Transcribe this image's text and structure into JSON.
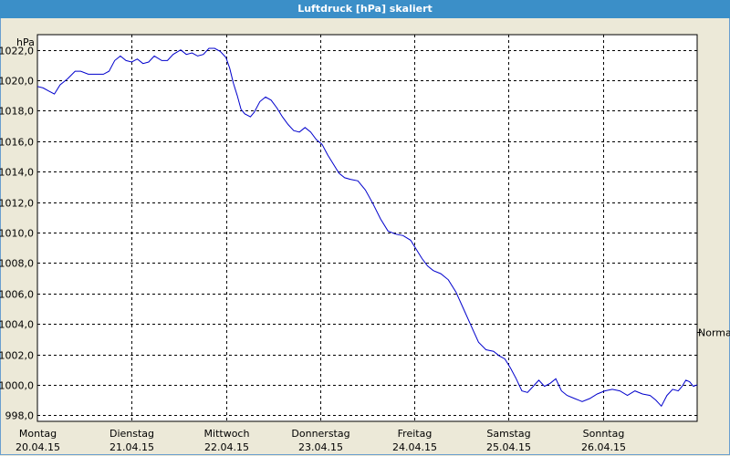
{
  "window": {
    "title": "Luftdruck [hPa] skaliert"
  },
  "chart_data": {
    "type": "line",
    "title": "Luftdruck [hPa] skaliert",
    "ylabel": "hPa",
    "right_label": "Normal",
    "right_label_value": 1003.5,
    "ylim": [
      997.6,
      1023.0
    ],
    "xlim": [
      0,
      7
    ],
    "y_ticks": [
      998,
      1000,
      1002,
      1004,
      1006,
      1008,
      1010,
      1012,
      1014,
      1016,
      1018,
      1020,
      1022
    ],
    "y_tick_labels": [
      "998,0",
      "1000,0",
      "1002,0",
      "1004,0",
      "1006,0",
      "1008,0",
      "1010,0",
      "1012,0",
      "1014,0",
      "1016,0",
      "1018,0",
      "1020,0",
      "1022,0"
    ],
    "x_ticks": [
      {
        "pos": 0,
        "day": "Montag",
        "date": "20.04.15"
      },
      {
        "pos": 1,
        "day": "Dienstag",
        "date": "21.04.15"
      },
      {
        "pos": 2,
        "day": "Mittwoch",
        "date": "22.04.15"
      },
      {
        "pos": 3,
        "day": "Donnerstag",
        "date": "23.04.15"
      },
      {
        "pos": 4,
        "day": "Freitag",
        "date": "24.04.15"
      },
      {
        "pos": 5,
        "day": "Samstag",
        "date": "25.04.15"
      },
      {
        "pos": 6,
        "day": "Sonntag",
        "date": "26.04.15"
      }
    ],
    "grid": true,
    "line_color": "#0000cc",
    "series": [
      {
        "x": [
          0,
          0.06,
          0.12,
          0.18,
          0.24,
          0.32,
          0.4,
          0.46,
          0.54,
          0.62,
          0.7,
          0.76,
          0.82,
          0.88,
          0.94,
          1.0,
          1.06,
          1.12,
          1.18,
          1.24,
          1.32,
          1.38,
          1.44,
          1.52,
          1.58,
          1.64,
          1.7,
          1.76,
          1.82,
          1.88,
          1.94,
          2.0,
          2.04,
          2.08,
          2.12,
          2.16,
          2.2,
          2.26,
          2.3,
          2.36,
          2.42,
          2.48,
          2.54,
          2.6,
          2.66,
          2.72,
          2.78,
          2.84,
          2.9,
          2.96,
          3.02,
          3.08,
          3.14,
          3.2,
          3.26,
          3.32,
          3.4,
          3.48,
          3.56,
          3.64,
          3.72,
          3.8,
          3.88,
          3.96,
          4.02,
          4.08,
          4.14,
          4.2,
          4.28,
          4.36,
          4.44,
          4.52,
          4.6,
          4.68,
          4.76,
          4.84,
          4.9,
          4.96,
          5.02,
          5.08,
          5.14,
          5.2,
          5.26,
          5.32,
          5.38,
          5.44,
          5.5,
          5.56,
          5.62,
          5.7,
          5.78,
          5.86,
          5.94,
          6.02,
          6.1,
          6.18,
          6.26,
          6.34,
          6.42,
          6.5,
          6.56,
          6.62,
          6.68,
          6.74,
          6.8,
          6.84,
          6.88,
          6.92,
          6.96,
          7.0
        ],
        "values": [
          1019.6,
          1019.5,
          1019.3,
          1019.1,
          1019.7,
          1020.1,
          1020.6,
          1020.6,
          1020.4,
          1020.4,
          1020.4,
          1020.6,
          1021.3,
          1021.6,
          1021.3,
          1021.2,
          1021.4,
          1021.1,
          1021.2,
          1021.6,
          1021.3,
          1021.3,
          1021.7,
          1022.0,
          1021.7,
          1021.8,
          1021.6,
          1021.7,
          1022.1,
          1022.1,
          1021.9,
          1021.5,
          1020.8,
          1019.8,
          1019.0,
          1018.1,
          1017.8,
          1017.6,
          1017.9,
          1018.6,
          1018.9,
          1018.7,
          1018.2,
          1017.6,
          1017.1,
          1016.7,
          1016.6,
          1016.9,
          1016.6,
          1016.1,
          1015.8,
          1015.1,
          1014.5,
          1013.9,
          1013.6,
          1013.5,
          1013.4,
          1012.8,
          1011.9,
          1010.9,
          1010.1,
          1009.9,
          1009.8,
          1009.5,
          1008.9,
          1008.3,
          1007.8,
          1007.5,
          1007.3,
          1006.9,
          1006.1,
          1005.0,
          1003.9,
          1002.8,
          1002.3,
          1002.2,
          1001.9,
          1001.7,
          1001.1,
          1000.4,
          999.6,
          999.5,
          999.9,
          1000.3,
          999.9,
          1000.1,
          1000.4,
          999.6,
          999.3,
          999.1,
          998.9,
          999.1,
          999.4,
          999.6,
          999.7,
          999.6,
          999.3,
          999.6,
          999.4,
          999.3,
          999.0,
          998.6,
          999.3,
          999.7,
          999.6,
          999.9,
          1000.3,
          1000.2,
          999.9,
          1000.0
        ]
      }
    ]
  }
}
